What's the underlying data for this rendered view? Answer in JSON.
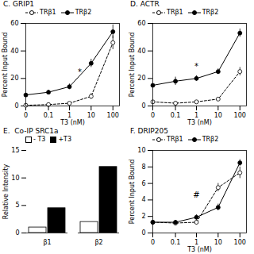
{
  "chart_data": [
    {
      "type": "line",
      "title": "C. GRIP1",
      "xlabel": "T3 (nM)",
      "ylabel": "Percent Input Bound",
      "log": "x",
      "xlim": [
        0,
        200
      ],
      "xticks": [
        0,
        0.1,
        1,
        10,
        100
      ],
      "ylim": [
        0,
        60
      ],
      "yticks": [
        0,
        20,
        40,
        60
      ],
      "legend": "upper left",
      "x": [
        0,
        0.1,
        1,
        10,
        100
      ],
      "series": [
        {
          "name": "TRβ1",
          "color": "black",
          "marker": "open_circle",
          "line_style": "dashed",
          "values": [
            0.5,
            1,
            2,
            7,
            46
          ],
          "errors": [
            0,
            0.5,
            0.5,
            2,
            5
          ]
        },
        {
          "name": "TRβ2",
          "color": "black",
          "marker": "circle",
          "line_style": "solid",
          "values": [
            8,
            10,
            14,
            31,
            54
          ],
          "errors": [
            0,
            1.5,
            2,
            3,
            5
          ]
        }
      ],
      "annotations": [
        {
          "text": "*",
          "x": 3,
          "y": 22
        }
      ]
    },
    {
      "type": "line",
      "title": "D. ACTR",
      "xlabel": "T3 (nM)",
      "ylabel": "Percent Input Bound",
      "log": "x",
      "xlim": [
        0,
        200
      ],
      "xticks": [
        0,
        0.1,
        1,
        10,
        100
      ],
      "ylim": [
        0,
        60
      ],
      "yticks": [
        0,
        20,
        40,
        60
      ],
      "legend": "upper left",
      "x": [
        0,
        0.1,
        1,
        10,
        100
      ],
      "series": [
        {
          "name": "TRβ1",
          "color": "black",
          "marker": "open_circle",
          "line_style": "dashed",
          "values": [
            3,
            2,
            3,
            5,
            25
          ],
          "errors": [
            0,
            0.5,
            0.5,
            1,
            3
          ]
        },
        {
          "name": "TRβ2",
          "color": "black",
          "marker": "circle",
          "line_style": "solid",
          "values": [
            15,
            18,
            20,
            25,
            53
          ],
          "errors": [
            0,
            3,
            2,
            2,
            3
          ]
        }
      ],
      "annotations": [
        {
          "text": "*",
          "x": 1,
          "y": 26
        }
      ]
    },
    {
      "type": "bar",
      "title": "E.  Co-IP SRC1a",
      "ylabel": "Relative Intensity",
      "ylim": [
        0,
        15
      ],
      "yticks": [
        0,
        5,
        10,
        15
      ],
      "legend": "upper left",
      "categories": [
        "β1",
        "β2"
      ],
      "series": [
        {
          "name": "- T3",
          "color": "white",
          "values": [
            1.0,
            2.0
          ]
        },
        {
          "name": "+T3",
          "color": "black",
          "values": [
            4.5,
            12.0
          ]
        }
      ]
    },
    {
      "type": "line",
      "title": "F. DRIP205",
      "xlabel": "T3 (nM)",
      "ylabel": "Percent Input Bound",
      "log": "x",
      "xlim": [
        0,
        200
      ],
      "xticks": [
        0,
        0.1,
        1,
        10,
        100
      ],
      "ylim": [
        0,
        10
      ],
      "yticks": [
        0,
        2,
        4,
        6,
        8,
        10
      ],
      "legend": "upper left",
      "x": [
        0,
        0.1,
        1,
        10,
        100
      ],
      "series": [
        {
          "name": "TRβ1",
          "color": "black",
          "marker": "open_circle",
          "line_style": "dashed",
          "values": [
            1.3,
            1.2,
            1.3,
            5.5,
            7.3
          ],
          "errors": [
            0,
            0.2,
            0.3,
            0.5,
            0.7
          ]
        },
        {
          "name": "TRβ2",
          "color": "black",
          "marker": "circle",
          "line_style": "solid",
          "values": [
            1.3,
            1.3,
            1.9,
            3.1,
            8.5
          ],
          "errors": [
            0,
            0.2,
            0.3,
            0.4,
            0.4
          ]
        }
      ],
      "annotations": [
        {
          "text": "#",
          "x": 1,
          "y": 4.2
        }
      ]
    }
  ]
}
